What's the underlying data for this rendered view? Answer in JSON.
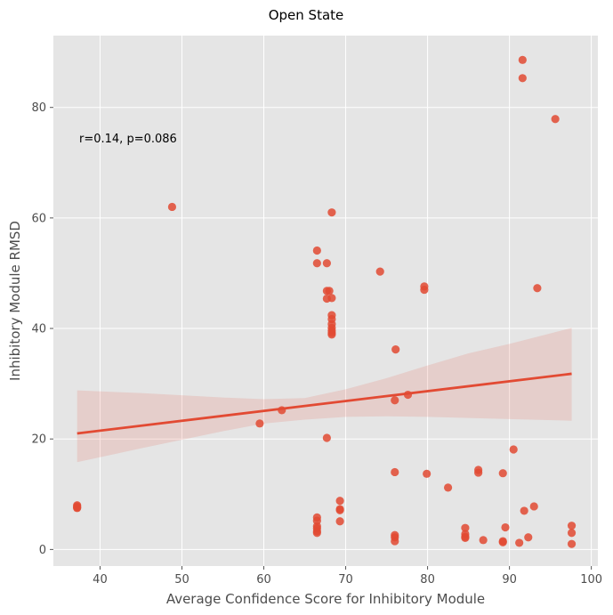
{
  "chart_data": {
    "type": "scatter",
    "title": "Open State",
    "xlabel": "Average Confidence Score for Inhibitory Module",
    "ylabel": "Inhibitory Module RMSD",
    "xlim": [
      34.3,
      100.8
    ],
    "ylim": [
      -3.0,
      93.0
    ],
    "xticks": [
      40,
      50,
      60,
      70,
      80,
      90,
      100
    ],
    "yticks": [
      0,
      20,
      40,
      60,
      80
    ],
    "grid": true,
    "annotation": "r=0.14, p=0.086",
    "colors": {
      "points": "#e24a33",
      "line": "#e24a33",
      "band": "#e24a33",
      "background": "#e5e5e5",
      "grid": "#ffffff"
    },
    "points": [
      {
        "x": 37.2,
        "y": 8.0
      },
      {
        "x": 37.2,
        "y": 7.6
      },
      {
        "x": 37.2,
        "y": 7.8
      },
      {
        "x": 37.2,
        "y": 7.5
      },
      {
        "x": 48.8,
        "y": 62.0
      },
      {
        "x": 59.5,
        "y": 22.8
      },
      {
        "x": 62.2,
        "y": 25.2
      },
      {
        "x": 66.5,
        "y": 54.1
      },
      {
        "x": 66.5,
        "y": 51.8
      },
      {
        "x": 66.5,
        "y": 5.8
      },
      {
        "x": 66.5,
        "y": 5.2
      },
      {
        "x": 66.5,
        "y": 4.2
      },
      {
        "x": 66.5,
        "y": 3.8
      },
      {
        "x": 66.5,
        "y": 3.3
      },
      {
        "x": 66.5,
        "y": 3.0
      },
      {
        "x": 67.7,
        "y": 51.8
      },
      {
        "x": 67.7,
        "y": 46.8
      },
      {
        "x": 67.7,
        "y": 45.4
      },
      {
        "x": 67.7,
        "y": 20.2
      },
      {
        "x": 68.0,
        "y": 46.8
      },
      {
        "x": 68.3,
        "y": 61.0
      },
      {
        "x": 68.3,
        "y": 45.5
      },
      {
        "x": 68.3,
        "y": 42.4
      },
      {
        "x": 68.3,
        "y": 41.7
      },
      {
        "x": 68.3,
        "y": 40.8
      },
      {
        "x": 68.3,
        "y": 40.1
      },
      {
        "x": 68.3,
        "y": 39.6
      },
      {
        "x": 68.3,
        "y": 39.2
      },
      {
        "x": 68.3,
        "y": 38.9
      },
      {
        "x": 69.3,
        "y": 8.8
      },
      {
        "x": 69.3,
        "y": 7.3
      },
      {
        "x": 69.3,
        "y": 7.1
      },
      {
        "x": 69.3,
        "y": 5.1
      },
      {
        "x": 74.2,
        "y": 50.3
      },
      {
        "x": 76.1,
        "y": 36.2
      },
      {
        "x": 76.0,
        "y": 27.0
      },
      {
        "x": 76.0,
        "y": 14.0
      },
      {
        "x": 76.0,
        "y": 2.6
      },
      {
        "x": 76.0,
        "y": 2.2
      },
      {
        "x": 76.0,
        "y": 1.5
      },
      {
        "x": 77.6,
        "y": 28.0
      },
      {
        "x": 79.6,
        "y": 47.6
      },
      {
        "x": 79.6,
        "y": 47.0
      },
      {
        "x": 79.9,
        "y": 13.7
      },
      {
        "x": 82.5,
        "y": 11.2
      },
      {
        "x": 84.6,
        "y": 3.9
      },
      {
        "x": 84.6,
        "y": 2.8
      },
      {
        "x": 84.6,
        "y": 2.3
      },
      {
        "x": 84.6,
        "y": 2.1
      },
      {
        "x": 86.2,
        "y": 14.4
      },
      {
        "x": 86.2,
        "y": 13.9
      },
      {
        "x": 86.8,
        "y": 1.7
      },
      {
        "x": 89.2,
        "y": 13.8
      },
      {
        "x": 89.2,
        "y": 1.5
      },
      {
        "x": 89.2,
        "y": 1.3
      },
      {
        "x": 89.5,
        "y": 4.0
      },
      {
        "x": 90.5,
        "y": 18.1
      },
      {
        "x": 91.2,
        "y": 1.2
      },
      {
        "x": 91.6,
        "y": 88.6
      },
      {
        "x": 91.6,
        "y": 85.3
      },
      {
        "x": 91.8,
        "y": 7.0
      },
      {
        "x": 92.3,
        "y": 2.2
      },
      {
        "x": 93.0,
        "y": 7.8
      },
      {
        "x": 93.4,
        "y": 47.3
      },
      {
        "x": 95.6,
        "y": 77.9
      },
      {
        "x": 97.6,
        "y": 4.3
      },
      {
        "x": 97.6,
        "y": 3.0
      },
      {
        "x": 97.6,
        "y": 1.0
      }
    ],
    "regression": {
      "x": [
        37.2,
        97.6
      ],
      "y": [
        21.0,
        31.8
      ]
    },
    "confidence_band": {
      "x": [
        37.2,
        45.0,
        55.0,
        60.0,
        65.0,
        70.0,
        75.0,
        80.0,
        85.0,
        90.0,
        97.6
      ],
      "upper": [
        28.8,
        28.3,
        27.5,
        27.2,
        27.4,
        29.0,
        31.0,
        33.3,
        35.5,
        37.2,
        40.1
      ],
      "lower": [
        15.8,
        18.3,
        21.4,
        22.8,
        23.5,
        24.0,
        24.1,
        24.0,
        23.8,
        23.6,
        23.3
      ]
    }
  }
}
